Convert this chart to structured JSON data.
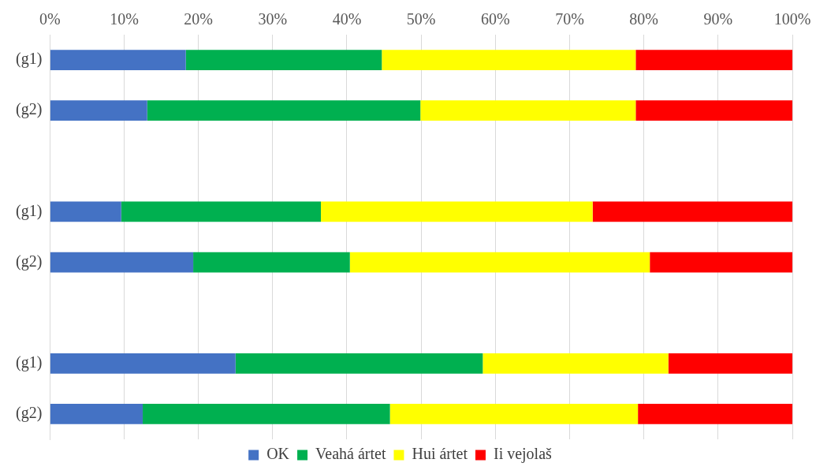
{
  "chart_data": {
    "type": "bar",
    "orientation": "horizontal",
    "stacked": true,
    "categories": [
      "(g1)",
      "(g2)",
      null,
      "(g1)",
      "(g2)",
      null,
      "(g1)",
      "(g2)"
    ],
    "series": [
      {
        "name": "OK",
        "color": "#4472c4",
        "values": [
          18.3,
          13.1,
          null,
          9.6,
          19.3,
          null,
          25.0,
          12.5
        ]
      },
      {
        "name": "Veahá ártet",
        "color": "#00b050",
        "values": [
          26.4,
          36.8,
          null,
          26.9,
          21.1,
          null,
          33.3,
          33.3
        ]
      },
      {
        "name": "Hui ártet",
        "color": "#ffff00",
        "values": [
          34.2,
          29.0,
          null,
          36.6,
          40.4,
          null,
          25.0,
          33.4
        ]
      },
      {
        "name": "Ii vejolaš",
        "color": "#ff0000",
        "values": [
          21.1,
          21.1,
          null,
          26.9,
          19.2,
          null,
          16.7,
          20.8
        ]
      }
    ],
    "xlim": [
      0,
      100
    ],
    "xticks": [
      {
        "value": 0,
        "label": "0%"
      },
      {
        "value": 10,
        "label": "10%"
      },
      {
        "value": 20,
        "label": "20%"
      },
      {
        "value": 30,
        "label": "30%"
      },
      {
        "value": 40,
        "label": "40%"
      },
      {
        "value": 50,
        "label": "50%"
      },
      {
        "value": 60,
        "label": "60%"
      },
      {
        "value": 70,
        "label": "70%"
      },
      {
        "value": 80,
        "label": "80%"
      },
      {
        "value": 90,
        "label": "90%"
      },
      {
        "value": 100,
        "label": "100%"
      }
    ],
    "grid": "x",
    "legend": "bottom"
  }
}
